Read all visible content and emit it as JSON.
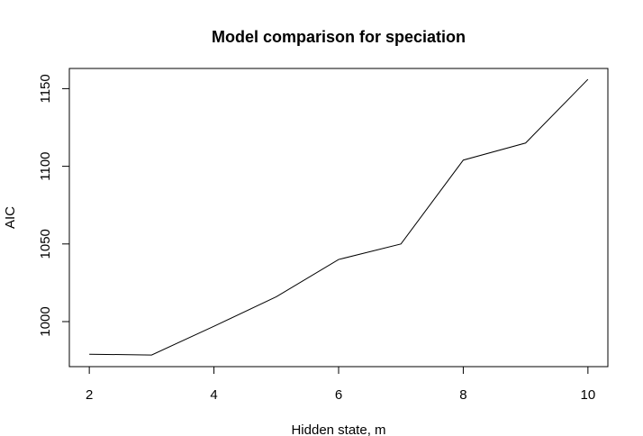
{
  "chart_data": {
    "type": "line",
    "title": "Model comparison for speciation",
    "xlabel": "Hidden state, m",
    "ylabel": "AIC",
    "x": [
      2,
      3,
      4,
      5,
      6,
      7,
      8,
      9,
      10
    ],
    "series": [
      {
        "values": [
          979,
          978.5,
          997,
          1016,
          1040,
          1050,
          1104,
          1115,
          1156
        ]
      }
    ],
    "xlim": [
      1.68,
      10.32
    ],
    "ylim": [
      971,
      1163
    ],
    "xticks": [
      2,
      4,
      6,
      8,
      10
    ],
    "yticks": [
      1000,
      1050,
      1100,
      1150
    ],
    "xtick_labels": [
      "2",
      "4",
      "6",
      "8",
      "10"
    ],
    "ytick_labels": [
      "1000",
      "1050",
      "1100",
      "1150"
    ],
    "grid": false,
    "line_color": "#000000"
  }
}
